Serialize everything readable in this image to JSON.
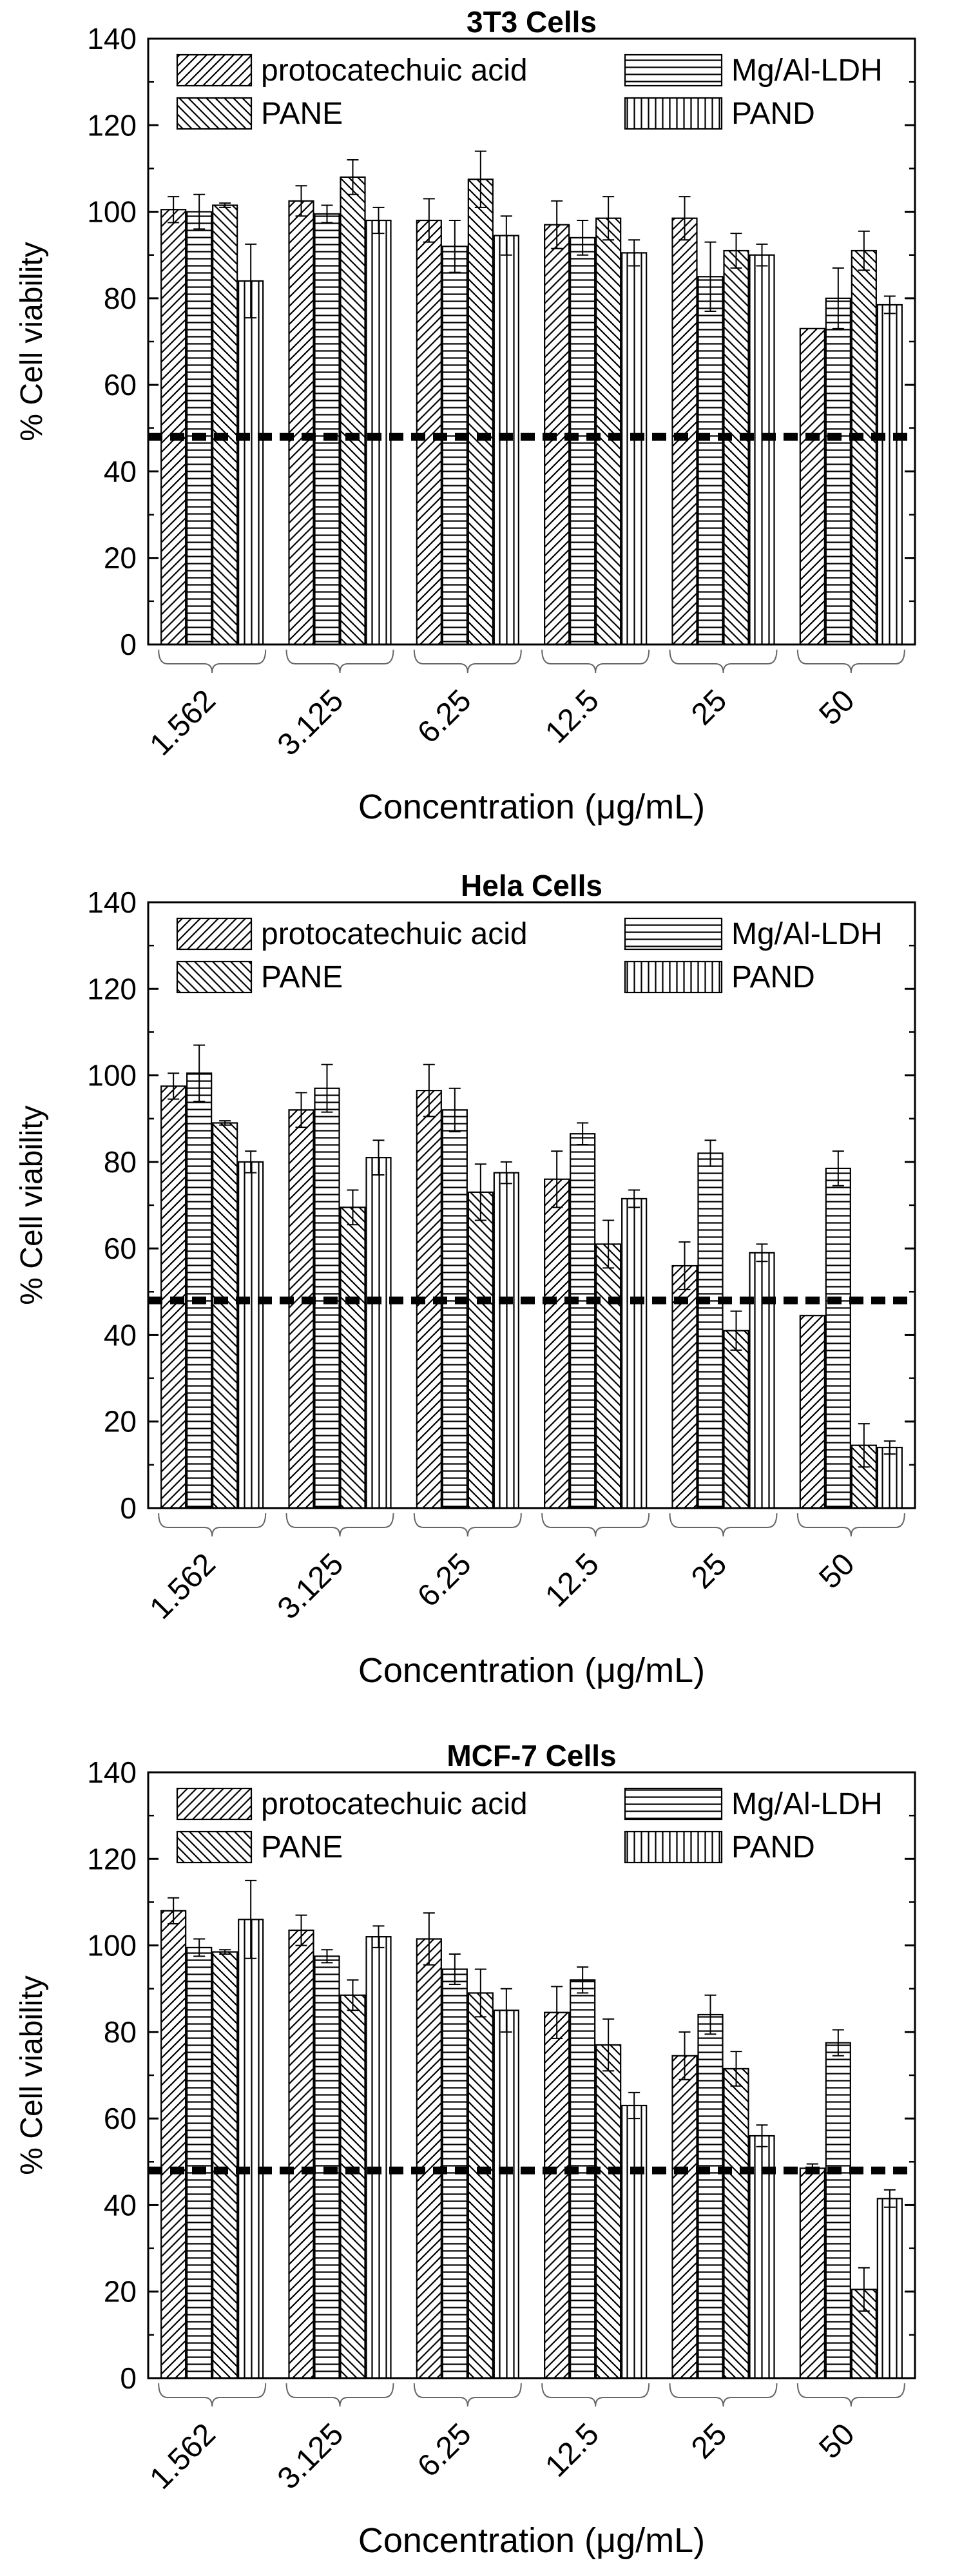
{
  "chart_data": [
    {
      "type": "bar",
      "title": "3T3 Cells",
      "xlabel": "Concentration (μg/mL)",
      "ylabel": "% Cell viability",
      "ylim": [
        0,
        140
      ],
      "yticks": [
        "0",
        "20",
        "40",
        "60",
        "80",
        "100",
        "120",
        "140"
      ],
      "threshold": 48,
      "categories": [
        "1.562",
        "3.125",
        "6.25",
        "12.5",
        "25",
        "50"
      ],
      "series": [
        {
          "name": "protocatechuic acid",
          "pattern": "diag-right",
          "values": [
            100.5,
            102.5,
            98,
            97,
            98.5,
            73
          ],
          "errors": [
            3,
            3.5,
            5,
            5.5,
            5,
            0
          ]
        },
        {
          "name": "Mg/Al-LDH",
          "pattern": "horizontal",
          "values": [
            100,
            99.5,
            92,
            94,
            85,
            80
          ],
          "errors": [
            4,
            2,
            6,
            4,
            8,
            7
          ]
        },
        {
          "name": "PANE",
          "pattern": "diag-left",
          "values": [
            101.5,
            108,
            107.5,
            98.5,
            91,
            91
          ],
          "errors": [
            0.5,
            4,
            6.5,
            5,
            4,
            4.5
          ]
        },
        {
          "name": "PAND",
          "pattern": "vertical",
          "values": [
            84,
            98,
            94.5,
            90.5,
            90,
            78.5
          ],
          "errors": [
            8.5,
            3,
            4.5,
            3,
            2.5,
            2
          ]
        }
      ]
    },
    {
      "type": "bar",
      "title": "Hela Cells",
      "xlabel": "Concentration (μg/mL)",
      "ylabel": "% Cell viability",
      "ylim": [
        0,
        140
      ],
      "yticks": [
        "0",
        "20",
        "40",
        "60",
        "80",
        "100",
        "120",
        "140"
      ],
      "threshold": 48,
      "categories": [
        "1.562",
        "3.125",
        "6.25",
        "12.5",
        "25",
        "50"
      ],
      "series": [
        {
          "name": "protocatechuic acid",
          "pattern": "diag-right",
          "values": [
            97.5,
            92,
            96.5,
            76,
            56,
            44.5
          ],
          "errors": [
            3,
            4,
            6,
            6.5,
            5.5,
            0
          ]
        },
        {
          "name": "Mg/Al-LDH",
          "pattern": "horizontal",
          "values": [
            100.5,
            97,
            92,
            86.5,
            82,
            78.5
          ],
          "errors": [
            6.5,
            5.5,
            5,
            2.5,
            3,
            4
          ]
        },
        {
          "name": "PANE",
          "pattern": "diag-left",
          "values": [
            89,
            69.5,
            73,
            61,
            41,
            14.5
          ],
          "errors": [
            0.5,
            4,
            6.5,
            5.5,
            4.5,
            5
          ]
        },
        {
          "name": "PAND",
          "pattern": "vertical",
          "values": [
            80,
            81,
            77.5,
            71.5,
            59,
            14
          ],
          "errors": [
            2.5,
            4,
            2.5,
            2,
            2,
            1.5
          ]
        }
      ]
    },
    {
      "type": "bar",
      "title": "MCF-7 Cells",
      "xlabel": "Concentration (μg/mL)",
      "ylabel": "% Cell viability",
      "ylim": [
        0,
        140
      ],
      "yticks": [
        "0",
        "20",
        "40",
        "60",
        "80",
        "100",
        "120",
        "140"
      ],
      "threshold": 48,
      "categories": [
        "1.562",
        "3.125",
        "6.25",
        "12.5",
        "25",
        "50"
      ],
      "series": [
        {
          "name": "protocatechuic acid",
          "pattern": "diag-right",
          "values": [
            108,
            103.5,
            101.5,
            84.5,
            74.5,
            48.5
          ],
          "errors": [
            3,
            3.5,
            6,
            6,
            5.5,
            1
          ]
        },
        {
          "name": "Mg/Al-LDH",
          "pattern": "horizontal",
          "values": [
            99.5,
            97.5,
            94.5,
            92,
            84,
            77.5
          ],
          "errors": [
            2,
            1.5,
            3.5,
            3,
            4.5,
            3
          ]
        },
        {
          "name": "PANE",
          "pattern": "diag-left",
          "values": [
            98.5,
            88.5,
            89,
            77,
            71.5,
            20.5
          ],
          "errors": [
            0.5,
            3.5,
            5.5,
            6,
            4,
            5
          ]
        },
        {
          "name": "PAND",
          "pattern": "vertical",
          "values": [
            106,
            102,
            85,
            63,
            56,
            41.5
          ],
          "errors": [
            9,
            2.5,
            5,
            3,
            2.5,
            2
          ]
        }
      ]
    }
  ]
}
